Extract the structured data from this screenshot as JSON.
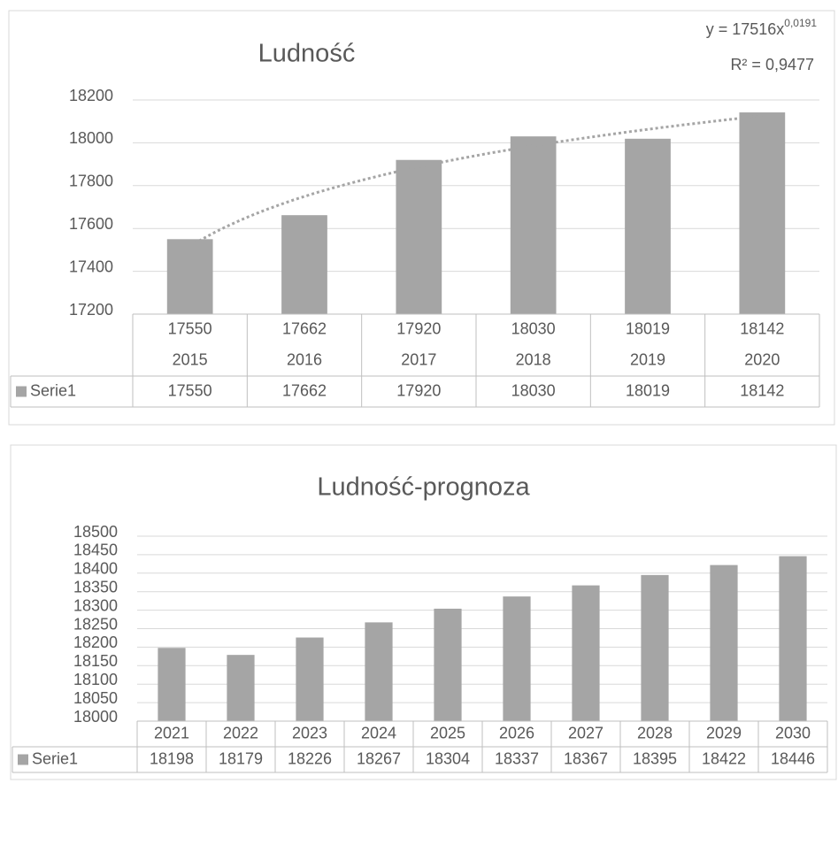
{
  "chart_data": [
    {
      "type": "bar",
      "title": "Ludność",
      "categories": [
        [
          "17550",
          "2015"
        ],
        [
          "17662",
          "2016"
        ],
        [
          "17920",
          "2017"
        ],
        [
          "18030",
          "2018"
        ],
        [
          "18019",
          "2019"
        ],
        [
          "18142",
          "2020"
        ]
      ],
      "series": [
        {
          "name": "Serie1",
          "color": "#a5a5a5",
          "values": [
            17550,
            17662,
            17920,
            18030,
            18019,
            18142
          ]
        }
      ],
      "ylim": [
        17200,
        18200
      ],
      "yticks": [
        17200,
        17400,
        17600,
        17800,
        18000,
        18200
      ],
      "grid": true,
      "data_table": true,
      "trendline": {
        "type": "power",
        "coefficient": 17516,
        "exponent": 0.0191,
        "equation": "y = 17516x",
        "exponent_label": "0,0191",
        "r_squared_label": "R² = 0,9477"
      }
    },
    {
      "type": "bar",
      "title": "Ludność-prognoza",
      "categories": [
        "2021",
        "2022",
        "2023",
        "2024",
        "2025",
        "2026",
        "2027",
        "2028",
        "2029",
        "2030"
      ],
      "series": [
        {
          "name": "Serie1",
          "color": "#a5a5a5",
          "values": [
            18198,
            18179,
            18226,
            18267,
            18304,
            18337,
            18367,
            18395,
            18422,
            18446
          ]
        }
      ],
      "ylim": [
        18000,
        18500
      ],
      "yticks": [
        18000,
        18050,
        18100,
        18150,
        18200,
        18250,
        18300,
        18350,
        18400,
        18450,
        18500
      ],
      "grid": true,
      "data_table": true
    }
  ]
}
